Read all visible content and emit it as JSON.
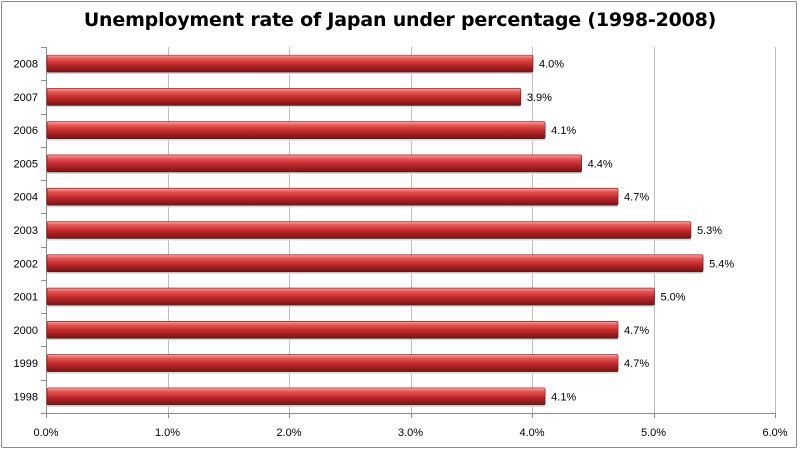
{
  "chart_data": {
    "type": "bar",
    "orientation": "horizontal",
    "title": "Unemployment rate of Japan under percentage (1998-2008)",
    "categories": [
      "2008",
      "2007",
      "2006",
      "2005",
      "2004",
      "2003",
      "2002",
      "2001",
      "2000",
      "1999",
      "1998"
    ],
    "values": [
      4.0,
      3.9,
      4.1,
      4.4,
      4.7,
      5.3,
      5.4,
      5.0,
      4.7,
      4.7,
      4.1
    ],
    "data_labels": [
      "4.0%",
      "3.9%",
      "4.1%",
      "4.4%",
      "4.7%",
      "5.3%",
      "5.4%",
      "5.0%",
      "4.7%",
      "4.7%",
      "4.1%"
    ],
    "x_ticks": [
      0,
      1,
      2,
      3,
      4,
      5,
      6
    ],
    "x_tick_labels": [
      "0.0%",
      "1.0%",
      "2.0%",
      "3.0%",
      "4.0%",
      "5.0%",
      "6.0%"
    ],
    "xlim": [
      0,
      6
    ],
    "xlabel": "",
    "ylabel": "",
    "grid": true,
    "legend": "none",
    "bar_color": "#c0282a"
  }
}
